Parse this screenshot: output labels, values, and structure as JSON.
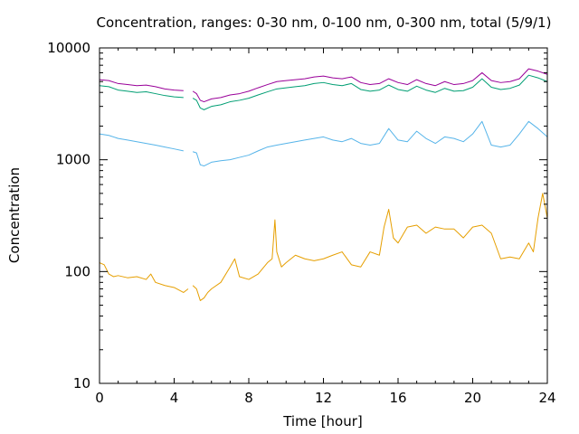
{
  "chart_data": {
    "type": "line",
    "title": "Concentration, ranges: 0-30 nm, 0-100 nm, 0-300 nm, total (5/9/1)",
    "xlabel": "Time [hour]",
    "ylabel": "Concentration",
    "xlim": [
      0,
      24
    ],
    "ylim": [
      10,
      10000
    ],
    "yscale": "log",
    "grid": false,
    "legend": "none",
    "x_ticks": [
      0,
      4,
      8,
      12,
      16,
      20,
      24
    ],
    "x_tick_labels": [
      "0",
      "4",
      "8",
      "12",
      "16",
      "20",
      "24"
    ],
    "y_ticks": [
      10,
      100,
      1000,
      10000
    ],
    "y_tick_labels": [
      "10",
      "100",
      "1000",
      "10000"
    ],
    "series": [
      {
        "color": "#990099",
        "x": [
          0,
          0.5,
          1,
          1.5,
          2,
          2.5,
          3,
          3.5,
          4,
          4.5,
          5,
          5.2,
          5.4,
          5.6,
          6,
          6.5,
          7,
          7.5,
          8,
          8.5,
          9,
          9.5,
          10,
          10.5,
          11,
          11.5,
          12,
          12.5,
          13,
          13.5,
          14,
          14.5,
          15,
          15.5,
          16,
          16.5,
          17,
          17.5,
          18,
          18.5,
          19,
          19.5,
          20,
          20.5,
          21,
          21.5,
          22,
          22.5,
          23,
          23.5,
          24
        ],
        "y": [
          5200,
          5100,
          4800,
          4700,
          4600,
          4650,
          4500,
          4300,
          4200,
          4150,
          4100,
          3900,
          3400,
          3300,
          3500,
          3600,
          3800,
          3900,
          4100,
          4400,
          4700,
          5000,
          5100,
          5200,
          5300,
          5500,
          5600,
          5400,
          5300,
          5500,
          4900,
          4700,
          4800,
          5300,
          4900,
          4700,
          5200,
          4800,
          4600,
          5000,
          4700,
          4800,
          5100,
          6000,
          5100,
          4900,
          5000,
          5300,
          6500,
          6200,
          5800
        ],
        "breaks": [
          [
            4.8,
            5.0
          ]
        ]
      },
      {
        "color": "#009e73",
        "x": [
          0,
          0.5,
          1,
          1.5,
          2,
          2.5,
          3,
          3.5,
          4,
          4.5,
          5,
          5.2,
          5.4,
          5.6,
          6,
          6.5,
          7,
          7.5,
          8,
          8.5,
          9,
          9.5,
          10,
          10.5,
          11,
          11.5,
          12,
          12.5,
          13,
          13.5,
          14,
          14.5,
          15,
          15.5,
          16,
          16.5,
          17,
          17.5,
          18,
          18.5,
          19,
          19.5,
          20,
          20.5,
          21,
          21.5,
          22,
          22.5,
          23,
          23.5,
          24
        ],
        "y": [
          4600,
          4500,
          4200,
          4100,
          4000,
          4050,
          3900,
          3750,
          3650,
          3600,
          3550,
          3400,
          2900,
          2800,
          3000,
          3100,
          3300,
          3400,
          3550,
          3800,
          4050,
          4300,
          4400,
          4500,
          4600,
          4800,
          4900,
          4700,
          4600,
          4800,
          4250,
          4100,
          4200,
          4650,
          4250,
          4100,
          4550,
          4200,
          4000,
          4350,
          4100,
          4150,
          4450,
          5300,
          4450,
          4250,
          4350,
          4650,
          5700,
          5400,
          5000
        ],
        "breaks": [
          [
            4.8,
            5.0
          ]
        ]
      },
      {
        "color": "#56b4e9",
        "x": [
          0,
          0.5,
          1,
          1.5,
          2,
          2.5,
          3,
          3.5,
          4,
          4.5,
          5,
          5.2,
          5.4,
          5.6,
          6,
          6.5,
          7,
          7.5,
          8,
          8.5,
          9,
          9.5,
          10,
          10.5,
          11,
          11.5,
          12,
          12.5,
          13,
          13.5,
          14,
          14.5,
          15,
          15.5,
          16,
          16.5,
          17,
          17.5,
          18,
          18.5,
          19,
          19.5,
          20,
          20.5,
          21,
          21.5,
          22,
          22.5,
          23,
          23.5,
          24
        ],
        "y": [
          1700,
          1650,
          1550,
          1500,
          1450,
          1400,
          1350,
          1300,
          1250,
          1200,
          1180,
          1150,
          900,
          880,
          950,
          980,
          1000,
          1050,
          1100,
          1200,
          1300,
          1350,
          1400,
          1450,
          1500,
          1550,
          1600,
          1500,
          1450,
          1550,
          1400,
          1350,
          1400,
          1900,
          1500,
          1450,
          1800,
          1550,
          1400,
          1600,
          1550,
          1450,
          1700,
          2200,
          1350,
          1300,
          1350,
          1700,
          2200,
          1900,
          1600
        ],
        "breaks": [
          [
            4.8,
            5.0
          ]
        ]
      },
      {
        "color": "#e69f00",
        "x": [
          0,
          0.25,
          0.5,
          0.75,
          1,
          1.5,
          2,
          2.5,
          2.75,
          3,
          3.5,
          4,
          4.5,
          4.75,
          5,
          5.2,
          5.4,
          5.6,
          5.8,
          6,
          6.5,
          7,
          7.25,
          7.5,
          8,
          8.5,
          9,
          9.25,
          9.4,
          9.5,
          9.75,
          10,
          10.5,
          11,
          11.5,
          12,
          12.5,
          13,
          13.5,
          14,
          14.5,
          15,
          15.25,
          15.5,
          15.75,
          16,
          16.5,
          17,
          17.5,
          18,
          18.5,
          19,
          19.5,
          20,
          20.5,
          21,
          21.5,
          22,
          22.5,
          23,
          23.25,
          23.5,
          23.75,
          24
        ],
        "y": [
          120,
          115,
          95,
          90,
          92,
          88,
          90,
          85,
          95,
          80,
          75,
          72,
          65,
          70,
          75,
          70,
          55,
          58,
          65,
          70,
          80,
          110,
          130,
          90,
          85,
          95,
          120,
          130,
          290,
          150,
          110,
          120,
          140,
          130,
          125,
          130,
          140,
          150,
          115,
          110,
          150,
          140,
          250,
          360,
          200,
          180,
          250,
          260,
          220,
          250,
          240,
          240,
          200,
          250,
          260,
          220,
          130,
          135,
          130,
          180,
          150,
          300,
          500,
          300
        ],
        "breaks": [
          [
            4.8,
            5.0
          ]
        ]
      }
    ]
  }
}
